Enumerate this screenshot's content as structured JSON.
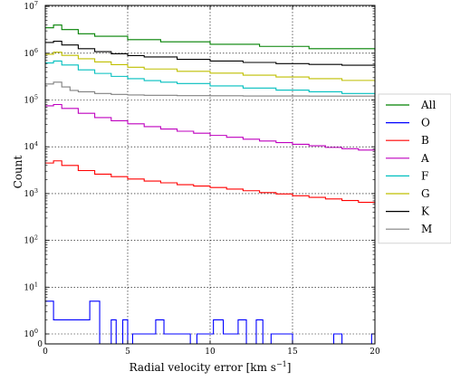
{
  "chart_data": {
    "type": "line",
    "step": true,
    "xlabel": "Radial velocity error [km s",
    "xlabel_sup": "−1",
    "xlabel_end": "]",
    "ylabel": "Count",
    "xlim": [
      0,
      20
    ],
    "ylim_symlog": [
      0,
      10000000
    ],
    "yscale": "symlog",
    "grid": true,
    "legend_position": "right",
    "x_ticks": [
      {
        "value": 0,
        "label": "0"
      },
      {
        "value": 5,
        "label": "5"
      },
      {
        "value": 10,
        "label": "10"
      },
      {
        "value": 15,
        "label": "15"
      },
      {
        "value": 20,
        "label": "20"
      }
    ],
    "y_ticks": [
      {
        "value": 0,
        "label": "0"
      },
      {
        "value": 1,
        "label": "10",
        "exp": "0"
      },
      {
        "value": 10,
        "label": "10",
        "exp": "1"
      },
      {
        "value": 100,
        "label": "10",
        "exp": "2"
      },
      {
        "value": 1000,
        "label": "10",
        "exp": "3"
      },
      {
        "value": 10000,
        "label": "10",
        "exp": "4"
      },
      {
        "value": 100000,
        "label": "10",
        "exp": "5"
      },
      {
        "value": 1000000,
        "label": "10",
        "exp": "6"
      },
      {
        "value": 10000000,
        "label": "10",
        "exp": "7"
      }
    ],
    "series": [
      {
        "name": "All",
        "color": "#008000",
        "x": [
          0,
          0.5,
          1,
          2,
          3,
          5,
          7,
          10,
          13,
          16,
          20
        ],
        "y": [
          3500000,
          4000000,
          3200000,
          2600000,
          2300000,
          1950000,
          1750000,
          1550000,
          1400000,
          1250000,
          1100000
        ]
      },
      {
        "name": "O",
        "color": "#0000ff",
        "x": [
          0,
          0.5,
          1,
          1.5,
          2,
          2.5,
          2.7,
          3.3,
          3.7,
          4,
          4.3,
          4.7,
          5,
          5.3,
          6.7,
          7.2,
          8.2,
          8.8,
          9.2,
          9.8,
          10.2,
          10.8,
          11.2,
          11.7,
          12.2,
          12.8,
          13.2,
          13.7,
          14.3,
          15,
          16,
          17.5,
          18,
          19.3,
          19.8,
          20
        ],
        "y": [
          5,
          2,
          2,
          2,
          2,
          2,
          5,
          0,
          0,
          2,
          0,
          2,
          0,
          1,
          2,
          1,
          1,
          0,
          1,
          1,
          2,
          1,
          1,
          2,
          0,
          2,
          0,
          1,
          1,
          0,
          0,
          1,
          0,
          0,
          1,
          1
        ]
      },
      {
        "name": "B",
        "color": "#ff0000",
        "x": [
          0,
          0.5,
          1,
          2,
          3,
          4,
          5,
          6,
          7,
          8,
          9,
          10,
          11,
          12,
          13,
          14,
          15,
          16,
          17,
          18,
          19,
          20
        ],
        "y": [
          4500,
          5000,
          4000,
          3100,
          2600,
          2300,
          2050,
          1850,
          1700,
          1550,
          1450,
          1350,
          1250,
          1150,
          1050,
          980,
          900,
          830,
          770,
          710,
          650,
          600
        ]
      },
      {
        "name": "A",
        "color": "#bf00bf",
        "x": [
          0,
          0.5,
          1,
          2,
          3,
          4,
          5,
          6,
          7,
          8,
          9,
          10,
          11,
          12,
          13,
          14,
          15,
          16,
          17,
          18,
          19,
          20
        ],
        "y": [
          75000,
          80000,
          66000,
          52000,
          42000,
          36000,
          31000,
          27000,
          24000,
          21500,
          19500,
          17500,
          16000,
          14500,
          13300,
          12300,
          11300,
          10500,
          9700,
          9100,
          8500,
          8000
        ]
      },
      {
        "name": "F",
        "color": "#00bfbf",
        "x": [
          0,
          0.5,
          1,
          2,
          3,
          4,
          5,
          6,
          7,
          8,
          10,
          12,
          14,
          16,
          18,
          20
        ],
        "y": [
          620000,
          680000,
          560000,
          440000,
          370000,
          320000,
          285000,
          260000,
          240000,
          225000,
          200000,
          180000,
          163000,
          150000,
          138000,
          128000
        ]
      },
      {
        "name": "G",
        "color": "#bfbf00",
        "x": [
          0,
          0.5,
          1,
          2,
          3,
          4,
          5,
          6,
          8,
          10,
          12,
          14,
          16,
          18,
          20
        ],
        "y": [
          950000,
          1050000,
          900000,
          760000,
          650000,
          570000,
          500000,
          460000,
          410000,
          375000,
          340000,
          310000,
          285000,
          262000,
          240000
        ]
      },
      {
        "name": "K",
        "color": "#000000",
        "x": [
          0,
          0.5,
          1,
          2,
          3,
          4,
          5,
          6,
          8,
          10,
          12,
          14,
          16,
          18,
          20
        ],
        "y": [
          1700000,
          1800000,
          1500000,
          1250000,
          1080000,
          970000,
          890000,
          830000,
          740000,
          680000,
          635000,
          600000,
          575000,
          555000,
          535000
        ]
      },
      {
        "name": "M",
        "color": "#808080",
        "x": [
          0,
          0.5,
          1,
          1.5,
          2,
          3,
          4,
          5,
          6,
          8,
          10,
          12,
          14,
          16,
          18,
          20
        ],
        "y": [
          220000,
          240000,
          190000,
          160000,
          150000,
          138000,
          132000,
          128000,
          126000,
          124000,
          123000,
          122000,
          122000,
          121000,
          121000,
          121000
        ]
      }
    ]
  }
}
